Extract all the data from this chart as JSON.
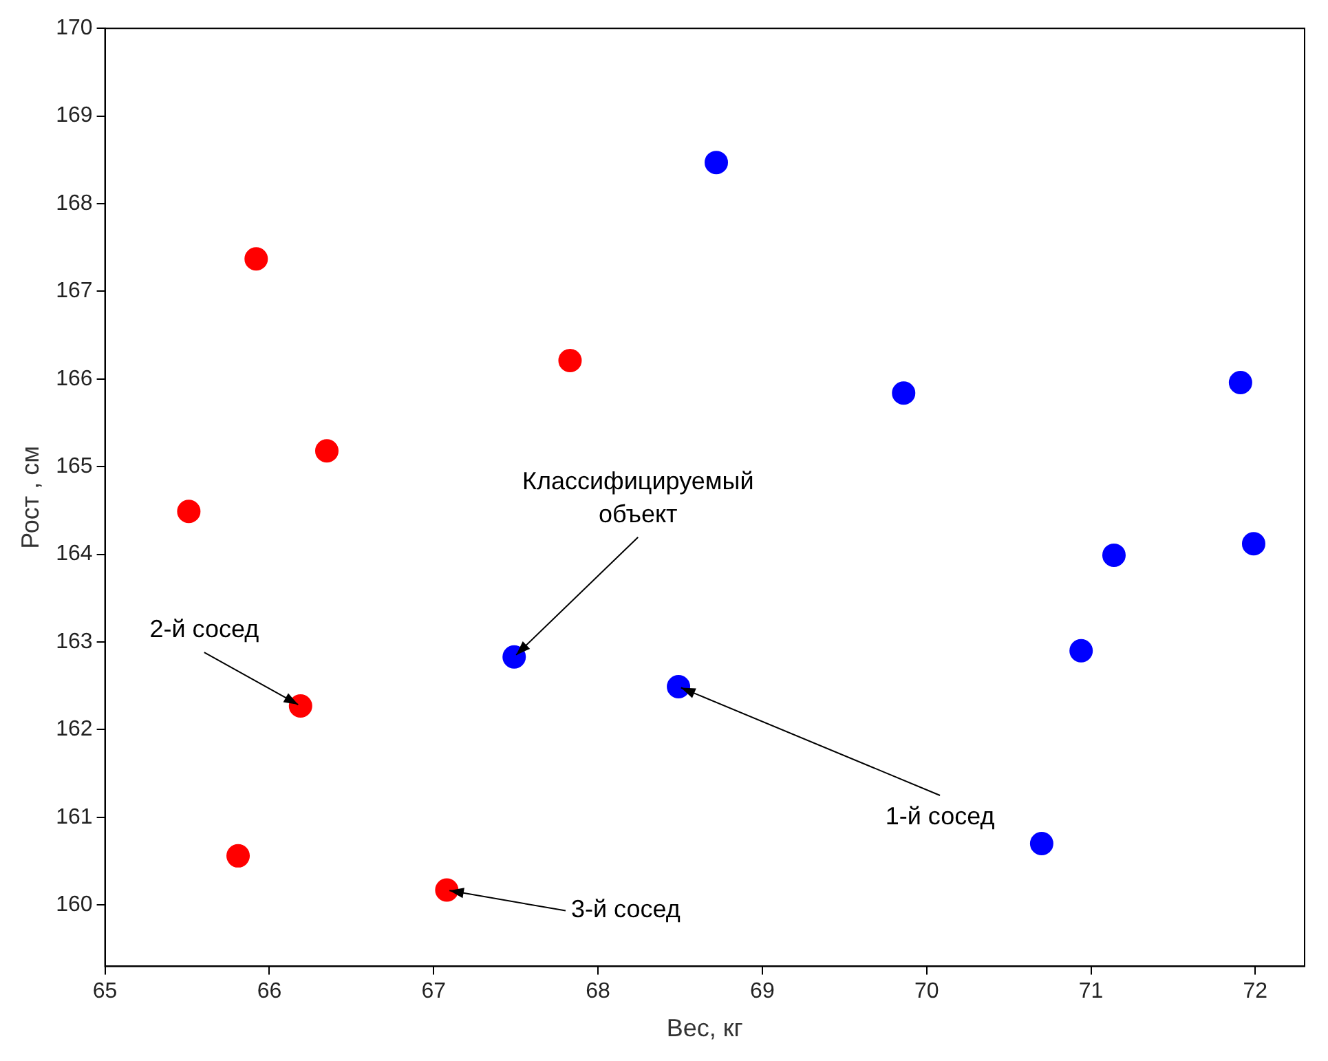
{
  "chart_data": {
    "type": "scatter",
    "xlabel": "Вес, кг",
    "ylabel": "Рост , см",
    "xlim": [
      65,
      72.3
    ],
    "xticks": [
      65,
      66,
      67,
      68,
      69,
      70,
      71,
      72
    ],
    "ylim": [
      159.3,
      170
    ],
    "yticks": [
      160,
      161,
      162,
      163,
      164,
      165,
      166,
      167,
      168,
      169,
      170
    ],
    "grid": false,
    "legend": false,
    "marker": "circle",
    "series": [
      {
        "color": "#ff0000",
        "x": [
          65.92,
          65.51,
          66.35,
          67.83,
          66.19,
          65.81,
          67.08
        ],
        "values": [
          167.37,
          164.49,
          165.18,
          166.21,
          162.27,
          160.56,
          160.17
        ]
      },
      {
        "color": "#0000ff",
        "x": [
          68.72,
          69.86,
          71.91,
          71.14,
          71.99,
          70.94,
          67.49,
          68.49,
          70.7
        ],
        "values": [
          168.47,
          165.84,
          165.96,
          163.99,
          164.12,
          162.9,
          162.83,
          162.49,
          160.7
        ]
      }
    ],
    "annotations": [
      {
        "text": "Классифицируемый\nобъект",
        "x": 67.49,
        "y": 162.83
      },
      {
        "text": "2-й сосед",
        "x": 66.19,
        "y": 162.27
      },
      {
        "text": "1-й сосед",
        "x": 68.49,
        "y": 162.49
      },
      {
        "text": "3-й сосед",
        "x": 67.08,
        "y": 160.17
      }
    ]
  }
}
